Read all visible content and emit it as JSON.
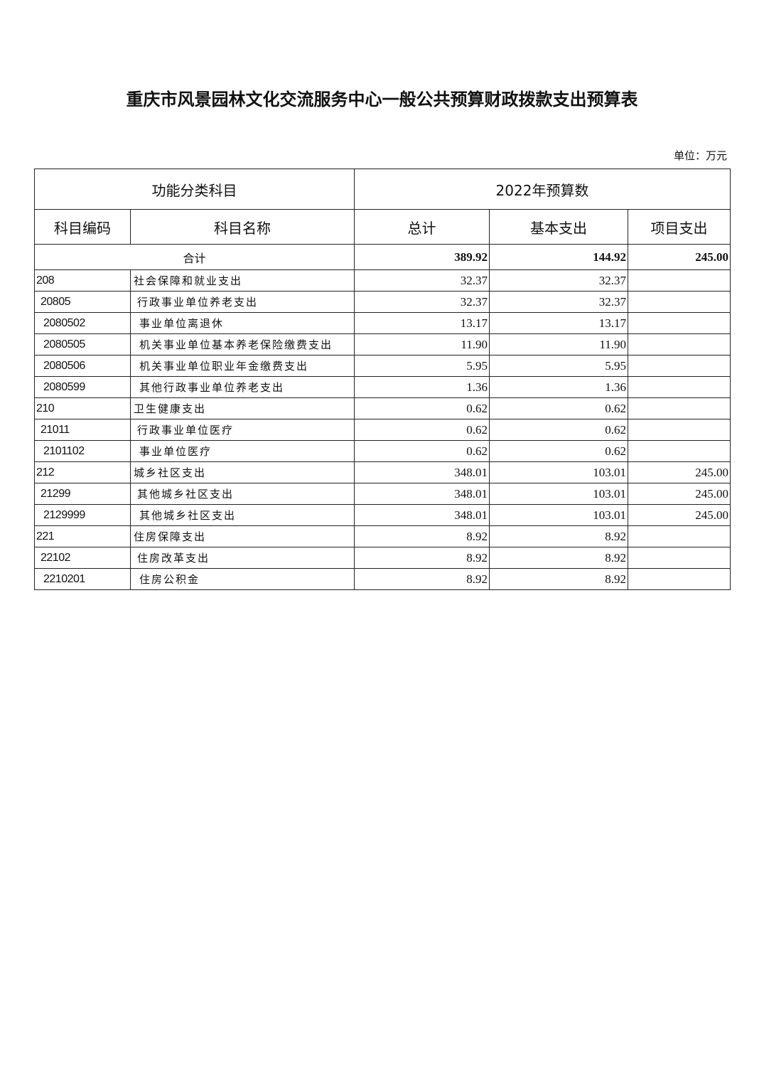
{
  "title": "重庆市风景园林文化交流服务中心一般公共预算财政拨款支出预算表",
  "unit": "单位：万元",
  "header": {
    "group_left": "功能分类科目",
    "group_right": "2022年预算数",
    "columns": [
      "科目编码",
      "科目名称",
      "总计",
      "基本支出",
      "项目支出"
    ]
  },
  "total": {
    "label": "合计",
    "total": "389.92",
    "basic": "144.92",
    "project": "245.00"
  },
  "rows": [
    {
      "code": "208",
      "name": "社会保障和就业支出",
      "total": "32.37",
      "basic": "32.37",
      "project": "",
      "level": 1
    },
    {
      "code": "20805",
      "name": "行政事业单位养老支出",
      "total": "32.37",
      "basic": "32.37",
      "project": "",
      "level": 2
    },
    {
      "code": "2080502",
      "name": "事业单位离退休",
      "total": "13.17",
      "basic": "13.17",
      "project": "",
      "level": 3
    },
    {
      "code": "2080505",
      "name": "机关事业单位基本养老保险缴费支出",
      "total": "11.90",
      "basic": "11.90",
      "project": "",
      "level": 3
    },
    {
      "code": "2080506",
      "name": "机关事业单位职业年金缴费支出",
      "total": "5.95",
      "basic": "5.95",
      "project": "",
      "level": 3
    },
    {
      "code": "2080599",
      "name": "其他行政事业单位养老支出",
      "total": "1.36",
      "basic": "1.36",
      "project": "",
      "level": 3
    },
    {
      "code": "210",
      "name": "卫生健康支出",
      "total": "0.62",
      "basic": "0.62",
      "project": "",
      "level": 1
    },
    {
      "code": "21011",
      "name": "行政事业单位医疗",
      "total": "0.62",
      "basic": "0.62",
      "project": "",
      "level": 2
    },
    {
      "code": "2101102",
      "name": "事业单位医疗",
      "total": "0.62",
      "basic": "0.62",
      "project": "",
      "level": 3
    },
    {
      "code": "212",
      "name": "城乡社区支出",
      "total": "348.01",
      "basic": "103.01",
      "project": "245.00",
      "level": 1
    },
    {
      "code": "21299",
      "name": "其他城乡社区支出",
      "total": "348.01",
      "basic": "103.01",
      "project": "245.00",
      "level": 2
    },
    {
      "code": "2129999",
      "name": "其他城乡社区支出",
      "total": "348.01",
      "basic": "103.01",
      "project": "245.00",
      "level": 3
    },
    {
      "code": "221",
      "name": "住房保障支出",
      "total": "8.92",
      "basic": "8.92",
      "project": "",
      "level": 1
    },
    {
      "code": "22102",
      "name": "住房改革支出",
      "total": "8.92",
      "basic": "8.92",
      "project": "",
      "level": 2
    },
    {
      "code": "2210201",
      "name": "住房公积金",
      "total": "8.92",
      "basic": "8.92",
      "project": "",
      "level": 3
    }
  ]
}
